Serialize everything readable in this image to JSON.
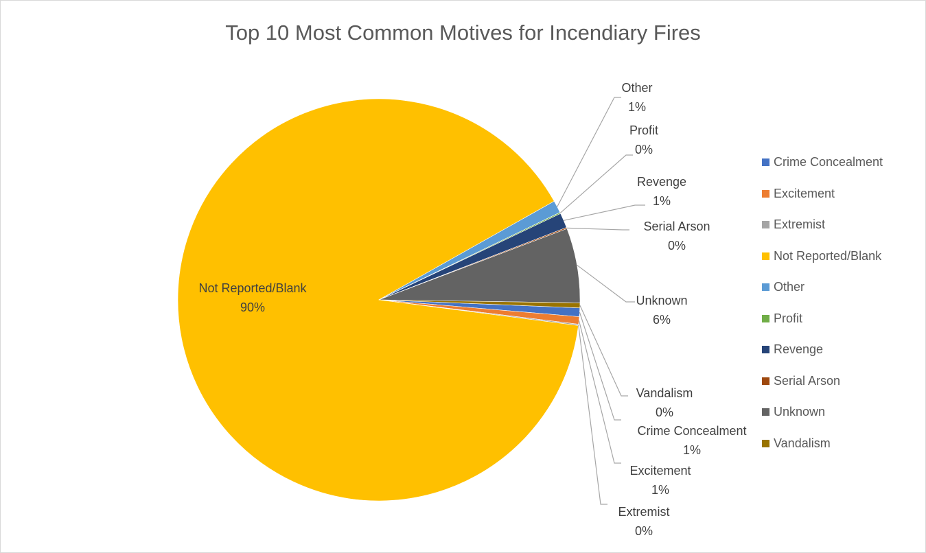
{
  "chart_data": {
    "type": "pie",
    "title": "Top 10 Most Common Motives for Incendiary Fires",
    "legend_position": "right",
    "slices": [
      {
        "name": "Crime Concealment",
        "value": 0.7,
        "label": "1%",
        "color": "#4472C4"
      },
      {
        "name": "Excitement",
        "value": 0.6,
        "label": "1%",
        "color": "#ED7D31"
      },
      {
        "name": "Extremist",
        "value": 0.1,
        "label": "0%",
        "color": "#A5A5A5"
      },
      {
        "name": "Not Reported/Blank",
        "value": 89.8,
        "label": "90%",
        "color": "#FFC000"
      },
      {
        "name": "Other",
        "value": 1.0,
        "label": "1%",
        "color": "#5B9BD5"
      },
      {
        "name": "Profit",
        "value": 0.1,
        "label": "0%",
        "color": "#70AD47"
      },
      {
        "name": "Revenge",
        "value": 1.2,
        "label": "1%",
        "color": "#264478"
      },
      {
        "name": "Serial Arson",
        "value": 0.1,
        "label": "0%",
        "color": "#9E480E"
      },
      {
        "name": "Unknown",
        "value": 6.0,
        "label": "6%",
        "color": "#636363"
      },
      {
        "name": "Vandalism",
        "value": 0.4,
        "label": "0%",
        "color": "#997300"
      }
    ]
  }
}
